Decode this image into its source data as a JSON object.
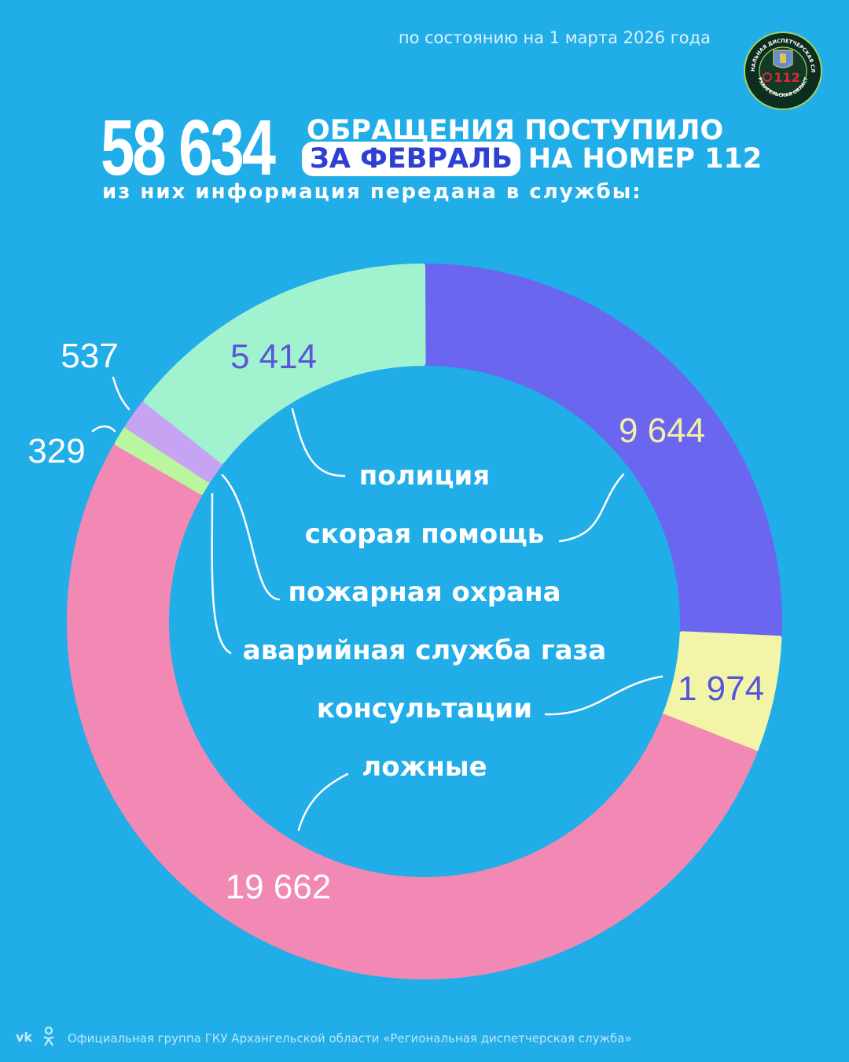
{
  "date_note": "по состоянию на 1 марта 2026 года",
  "headline": {
    "total": "58 634",
    "line1": "ОБРАЩЕНИЯ ПОСТУПИЛО",
    "pill": "ЗА ФЕВРАЛЬ",
    "line2_rest": "НА НОМЕР 112",
    "subline": "из них информация передана в службы:"
  },
  "logo": {
    "ring_text_top": "РЕГИОНАЛЬНАЯ ДИСПЕТЧЕРСКАЯ СЛУЖБА",
    "ring_text_bottom": "АРХАНГЕЛЬСКАЯ ОБЛАСТЬ",
    "center_text": "112",
    "icon": "coat-of-arms-phone-icon"
  },
  "colors": {
    "background": "#21ade8",
    "police": "#a1f2cf",
    "ambulance": "#6b66ef",
    "consult": "#f2f5a7",
    "false_calls": "#f189b4",
    "fire": "#c6a4f3",
    "gas": "#b9f69d"
  },
  "chart_data": {
    "type": "pie",
    "donut": true,
    "slices": [
      {
        "label": "скорая помощь",
        "value": 9644,
        "display": "9 644",
        "color": "#6b66ef",
        "label_color": "#f4f1a6"
      },
      {
        "label": "консультации",
        "value": 1974,
        "display": "1 974",
        "color": "#f2f5a7",
        "label_color": "#5454dd"
      },
      {
        "label": "ложные",
        "value": 19662,
        "display": "19 662",
        "color": "#f189b4",
        "label_color": "#ffffff"
      },
      {
        "label": "аварийная служба газа",
        "value": 329,
        "display": "329",
        "color": "#b9f69d",
        "label_color": "#ffffff"
      },
      {
        "label": "пожарная охрана",
        "value": 537,
        "display": "537",
        "color": "#c6a4f3",
        "label_color": "#ffffff"
      },
      {
        "label": "полиция",
        "value": 5414,
        "display": "5 414",
        "color": "#a1f2cf",
        "label_color": "#5b55d8"
      }
    ],
    "legend_order": [
      "полиция",
      "скорая помощь",
      "пожарная охрана",
      "аварийная служба газа",
      "консультации",
      "ложные"
    ]
  },
  "footer": {
    "text": "Официальная группа ГКУ Архангельской области «Региональная диспетчерская служба»",
    "icons": [
      "vk-icon",
      "odnoklassniki-icon"
    ]
  }
}
